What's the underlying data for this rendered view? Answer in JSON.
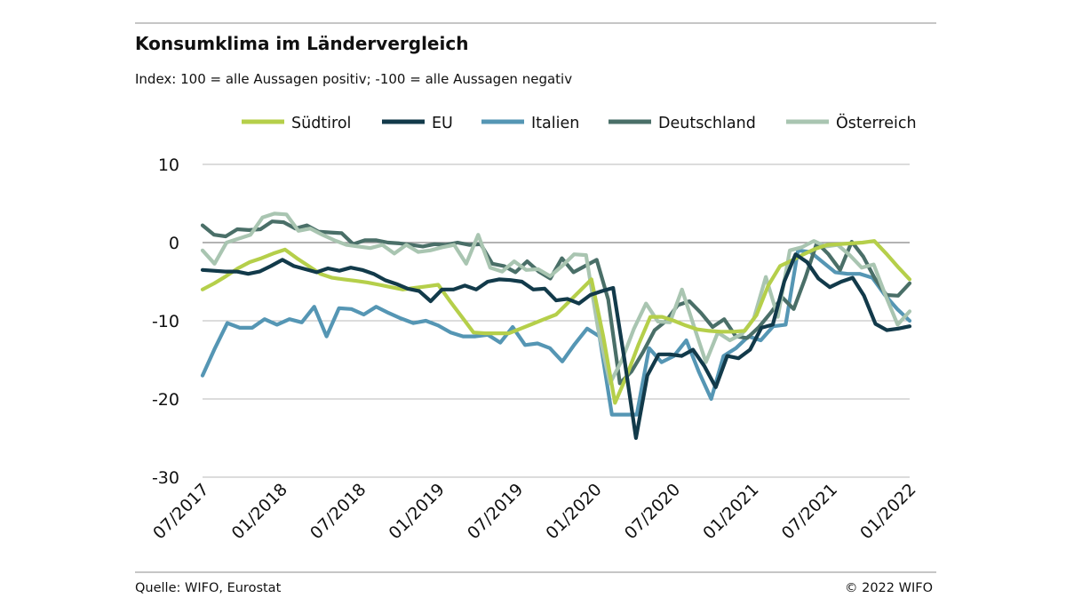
{
  "header": {
    "title": "Konsumklima im Ländervergleich",
    "subtitle": "Index: 100 = alle Aussagen positiv; -100 =  alle Aussagen negativ"
  },
  "footer": {
    "source": "Quelle: WIFO, Eurostat",
    "copyright": "© 2022 WIFO"
  },
  "colors": {
    "Südtirol": "#b5cf4a",
    "EU": "#123a4a",
    "Italien": "#5596b4",
    "Deutschland": "#4a6f68",
    "Österreich": "#a9c5b1",
    "zero_line": "#9a9a9a",
    "grid": "#b8b8b8"
  },
  "chart_data": {
    "type": "line",
    "title": "Konsumklima im Ländervergleich",
    "subtitle": "Index: 100 = alle Aussagen positiv; -100 =  alle Aussagen negativ",
    "xlabel": "",
    "ylabel": "",
    "ylim": [
      -30,
      10
    ],
    "yticks": [
      10,
      0,
      -10,
      -20,
      -30
    ],
    "ytick_labels": [
      "10",
      "0",
      "-10",
      "-20",
      "-30"
    ],
    "x_start": "07/2017",
    "x_end": "01/2022",
    "xtick_labels": [
      "07/2017",
      "01/2018",
      "07/2018",
      "01/2019",
      "07/2019",
      "01/2020",
      "07/2020",
      "01/2021",
      "07/2021",
      "01/2022"
    ],
    "grid": true,
    "legend_position": "top",
    "series": [
      {
        "name": "Südtirol",
        "values": [
          -6,
          -5.2,
          -4.3,
          -3.3,
          -2.5,
          -2,
          -1.4,
          -0.9,
          -2,
          -3,
          -4,
          -4.5,
          -4.7,
          -4.9,
          -5.1,
          -5.4,
          -5.7,
          -6,
          -5.8,
          -5.6,
          -5.4,
          -7.5,
          -9.5,
          -11.5,
          -11.6,
          -11.6,
          -11.6,
          -11,
          -10.4,
          -9.8,
          -9.2,
          -7.7,
          -6.2,
          -4.7,
          -12,
          -20.5,
          -17,
          -13,
          -9.5,
          -9.5,
          -10,
          -10.6,
          -11.1,
          -11.3,
          -11.4,
          -11.4,
          -11.3,
          -9.3,
          -5.5,
          -3,
          -2.3,
          -1.5,
          -0.8,
          -0.3,
          -0.2,
          -0.1,
          0,
          0.2,
          -1.4,
          -3.1,
          -4.7
        ]
      },
      {
        "name": "EU",
        "values": [
          -3.5,
          -3.6,
          -3.7,
          -3.7,
          -4,
          -3.7,
          -3,
          -2.2,
          -3,
          -3.4,
          -3.8,
          -3.3,
          -3.6,
          -3.2,
          -3.5,
          -4,
          -4.8,
          -5.3,
          -5.9,
          -6.2,
          -7.5,
          -6,
          -6,
          -5.5,
          -6,
          -5,
          -4.7,
          -4.8,
          -5,
          -6,
          -5.9,
          -7.4,
          -7.2,
          -7.8,
          -6.7,
          -6.2,
          -5.8,
          -15,
          -25,
          -17,
          -14.3,
          -14.3,
          -14.5,
          -13.7,
          -15.8,
          -18.5,
          -14.5,
          -14.8,
          -13.7,
          -10.9,
          -10.5,
          -5,
          -1.5,
          -2.5,
          -4.6,
          -5.7,
          -5,
          -4.5,
          -6.8,
          -10.4,
          -11.2,
          -11,
          -10.7
        ]
      },
      {
        "name": "Italien",
        "values": [
          -17,
          -13.5,
          -10.3,
          -10.9,
          -10.9,
          -9.8,
          -10.5,
          -9.8,
          -10.2,
          -8.2,
          -12,
          -8.4,
          -8.5,
          -9.2,
          -8.2,
          -9,
          -9.7,
          -10.3,
          -10,
          -10.6,
          -11.5,
          -12,
          -12,
          -11.8,
          -12.8,
          -10.8,
          -13.1,
          -12.9,
          -13.5,
          -15.2,
          -13,
          -11,
          -12,
          -22,
          -22,
          -22,
          -13.5,
          -15.3,
          -14.5,
          -12.5,
          -16.5,
          -20,
          -14.5,
          -13.5,
          -12,
          -12.5,
          -10.7,
          -10.5,
          -1,
          -1.2,
          -2.5,
          -3.8,
          -4,
          -4,
          -4.5,
          -6.7,
          -8.5,
          -10
        ]
      },
      {
        "name": "Deutschland",
        "values": [
          2.2,
          1,
          0.8,
          1.7,
          1.6,
          1.7,
          2.7,
          2.6,
          1.8,
          2.2,
          1.4,
          1.3,
          1.2,
          -0.2,
          0.3,
          0.3,
          0,
          -0.1,
          -0.3,
          -0.5,
          -0.2,
          -0.3,
          0,
          -0.3,
          -0.2,
          -2.7,
          -3,
          -3.8,
          -2.4,
          -3.7,
          -4.6,
          -2,
          -3.8,
          -3,
          -2.2,
          -7.3,
          -18,
          -16.5,
          -14,
          -11.2,
          -10,
          -8,
          -7.5,
          -9,
          -10.8,
          -9.8,
          -12,
          -12.2,
          -10.8,
          -9,
          -7,
          -8.5,
          -4.5,
          0,
          -1.5,
          -3.5,
          0.1,
          -1.8,
          -4.6,
          -6.7,
          -6.8,
          -5.2
        ]
      },
      {
        "name": "Österreich",
        "values": [
          -1,
          -2.7,
          0,
          0.5,
          1,
          3.2,
          3.7,
          3.6,
          1.5,
          1.8,
          1,
          0.3,
          -0.3,
          -0.5,
          -0.7,
          -0.3,
          -1.4,
          -0.3,
          -1.2,
          -1,
          -0.6,
          -0.3,
          -2.7,
          1,
          -3.2,
          -3.7,
          -2.4,
          -3.5,
          -3.4,
          -4.3,
          -3,
          -1.5,
          -1.6,
          -11,
          -18,
          -15,
          -11,
          -7.8,
          -10.1,
          -10.2,
          -6,
          -10.7,
          -15.3,
          -11.5,
          -12.5,
          -11.7,
          -9.7,
          -4.4,
          -9.5,
          -1,
          -0.6,
          0.2,
          -0.5,
          -0.3,
          -1.6,
          -3.2,
          -2.8,
          -6.8,
          -10.5,
          -8.8
        ]
      }
    ]
  }
}
